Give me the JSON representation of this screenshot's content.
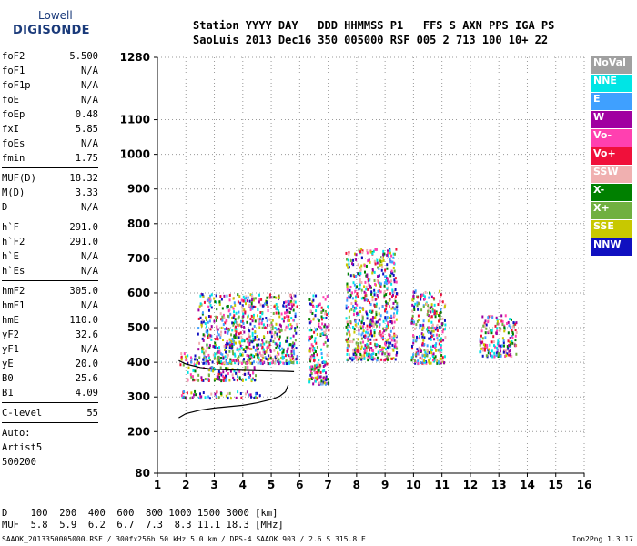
{
  "logo": {
    "top": "Lowell",
    "main": "DIGISONDE"
  },
  "header": {
    "line1": "Station YYYY DAY   DDD HHMMSS P1   FFS S AXN PPS IGA PS",
    "line2": "SaoLuis 2013 Dec16 350 005000 RSF 005 2 713 100 10+ 22"
  },
  "params": [
    {
      "k": "foF2",
      "v": "5.500"
    },
    {
      "k": "foF1",
      "v": "N/A"
    },
    {
      "k": "foF1p",
      "v": "N/A"
    },
    {
      "k": "foE",
      "v": "N/A"
    },
    {
      "k": "foEp",
      "v": "0.48"
    },
    {
      "k": "fxI",
      "v": "5.85"
    },
    {
      "k": "foEs",
      "v": "N/A"
    },
    {
      "k": "fmin",
      "v": "1.75"
    },
    {
      "sep": true
    },
    {
      "k": "MUF(D)",
      "v": "18.32"
    },
    {
      "k": "M(D)",
      "v": "3.33"
    },
    {
      "k": "D",
      "v": "N/A"
    },
    {
      "sep": true
    },
    {
      "k": "h`F",
      "v": "291.0"
    },
    {
      "k": "h`F2",
      "v": "291.0"
    },
    {
      "k": "h`E",
      "v": "N/A"
    },
    {
      "k": "h`Es",
      "v": "N/A"
    },
    {
      "sep": true
    },
    {
      "k": "hmF2",
      "v": "305.0"
    },
    {
      "k": "hmF1",
      "v": "N/A"
    },
    {
      "k": "hmE",
      "v": "110.0"
    },
    {
      "k": "yF2",
      "v": "32.6"
    },
    {
      "k": "yF1",
      "v": "N/A"
    },
    {
      "k": "yE",
      "v": "20.0"
    },
    {
      "k": "B0",
      "v": "25.6"
    },
    {
      "k": "B1",
      "v": "4.09"
    },
    {
      "sep": true
    },
    {
      "k": "C-level",
      "v": "55"
    },
    {
      "sep": true
    }
  ],
  "autoscale": {
    "line1": "Auto:",
    "line2": "Artist5",
    "line3": "500200"
  },
  "legend": [
    {
      "label": "NoVal",
      "color": "#a0a0a0"
    },
    {
      "label": "NNE",
      "color": "#00e5e5"
    },
    {
      "label": "E",
      "color": "#3fa0ff"
    },
    {
      "label": "W",
      "color": "#a000a0"
    },
    {
      "label": "Vo-",
      "color": "#ff40b0"
    },
    {
      "label": "Vo+",
      "color": "#f0103a"
    },
    {
      "label": "SSW",
      "color": "#f0b0b0"
    },
    {
      "label": "X-",
      "color": "#008000"
    },
    {
      "label": "X+",
      "color": "#70b040"
    },
    {
      "label": "SSE",
      "color": "#c8c800"
    },
    {
      "label": "NNW",
      "color": "#1010c0"
    }
  ],
  "bottom": {
    "row1": "D    100  200  400  600  800 1000 1500 3000 [km]",
    "row2": "MUF  5.8  5.9  6.2  6.7  7.3  8.3 11.1 18.3 [MHz]"
  },
  "footer": {
    "text": "SAAOK_2013350005000.RSF / 300fx256h 50 kHz 5.0 km / DPS-4 SAAOK 903 / 2.6 S 315.8 E",
    "version": "Ion2Png 1.3.17"
  },
  "chart_data": {
    "type": "scatter",
    "title": "",
    "xlabel": "",
    "ylabel": "",
    "xlim": [
      1,
      16
    ],
    "ylim": [
      80,
      1280
    ],
    "x_ticks": [
      1,
      2,
      3,
      4,
      5,
      6,
      7,
      8,
      9,
      10,
      11,
      12,
      13,
      14,
      15,
      16
    ],
    "y_ticks": [
      80,
      200,
      300,
      400,
      500,
      600,
      700,
      800,
      900,
      1000,
      1100,
      1280
    ],
    "grid": true,
    "echo_clusters": [
      {
        "x_range": [
          1.75,
          2.4
        ],
        "h_range": [
          395,
          430
        ]
      },
      {
        "x_range": [
          2.4,
          5.9
        ],
        "h_range": [
          400,
          600
        ]
      },
      {
        "x_range": [
          1.8,
          4.6
        ],
        "h_range": [
          300,
          320
        ]
      },
      {
        "x_range": [
          2.0,
          4.5
        ],
        "h_range": [
          350,
          390
        ]
      },
      {
        "x_range": [
          6.3,
          7.0
        ],
        "h_range": [
          340,
          600
        ]
      },
      {
        "x_range": [
          7.6,
          9.4
        ],
        "h_range": [
          410,
          730
        ]
      },
      {
        "x_range": [
          9.9,
          11.1
        ],
        "h_range": [
          400,
          610
        ]
      },
      {
        "x_range": [
          12.3,
          13.6
        ],
        "h_range": [
          420,
          540
        ]
      }
    ],
    "virtual_trace": [
      [
        1.75,
        240
      ],
      [
        2,
        252
      ],
      [
        2.5,
        262
      ],
      [
        3,
        268
      ],
      [
        3.5,
        272
      ],
      [
        4,
        276
      ],
      [
        4.5,
        283
      ],
      [
        5,
        293
      ],
      [
        5.3,
        302
      ],
      [
        5.5,
        315
      ],
      [
        5.6,
        335
      ]
    ],
    "ordinary_trace": [
      [
        1.75,
        405
      ],
      [
        2,
        395
      ],
      [
        2.5,
        385
      ],
      [
        3,
        380
      ],
      [
        3.5,
        378
      ],
      [
        4,
        377
      ],
      [
        4.5,
        376
      ],
      [
        5,
        375
      ],
      [
        5.5,
        374
      ],
      [
        5.8,
        373
      ]
    ]
  }
}
